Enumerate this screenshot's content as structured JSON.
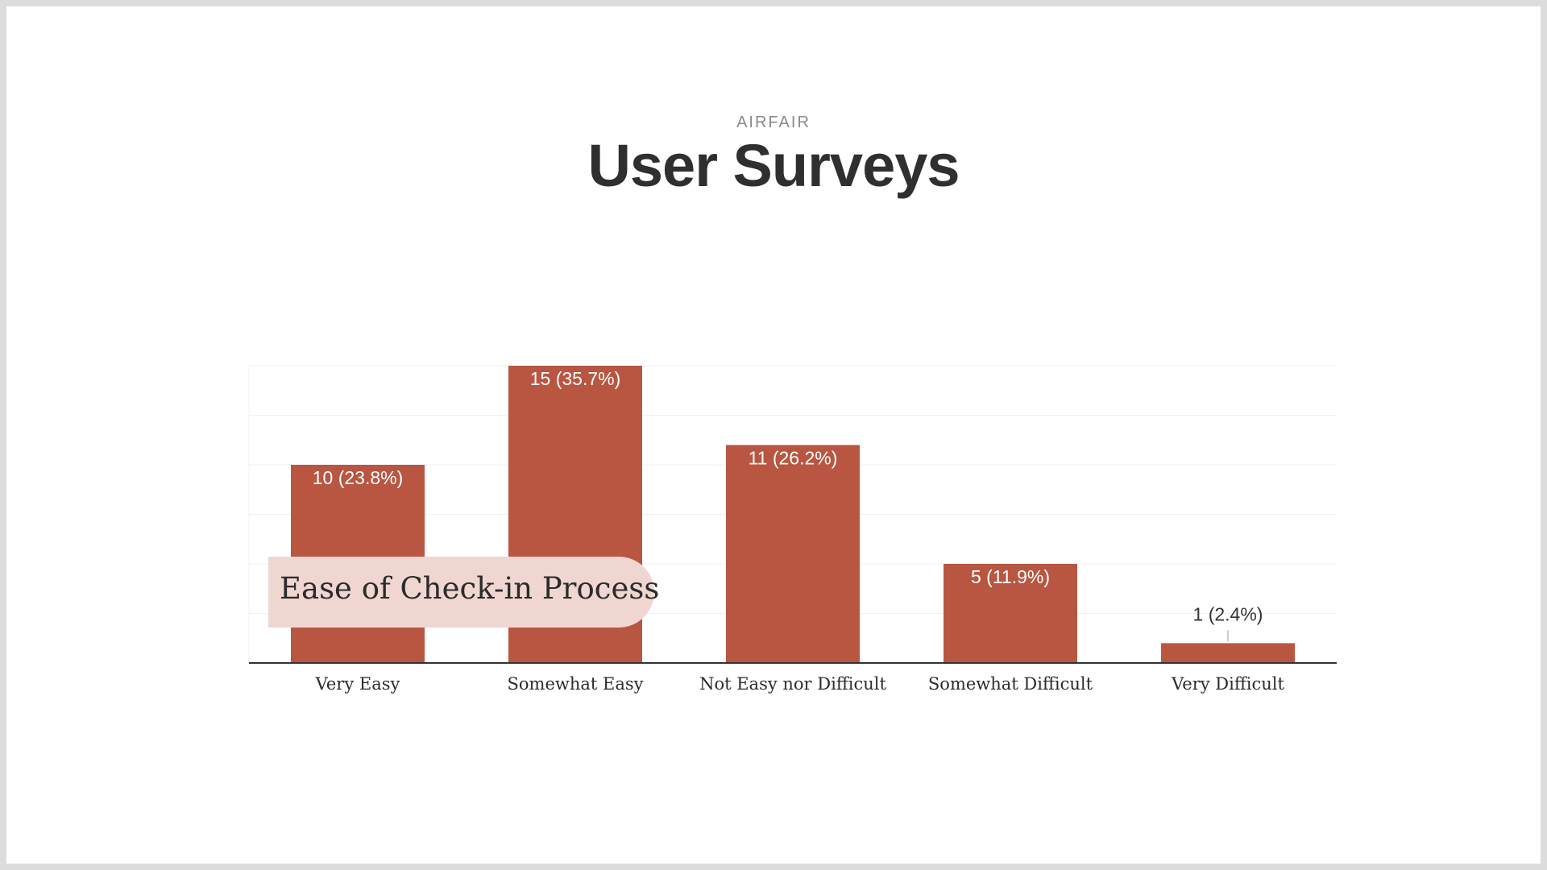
{
  "slide": {
    "eyebrow": "AIRFAIR",
    "title": "User Surveys"
  },
  "colors": {
    "bar": "#b85641",
    "overlay": "#f0d6d0",
    "gridline": "#f0f0f0",
    "axis": "#333333"
  },
  "chart_data": {
    "type": "bar",
    "title": "Ease of Check-in Process",
    "categories": [
      "Very Easy",
      "Somewhat Easy",
      "Not Easy nor Difficult",
      "Somewhat Difficult",
      "Very Difficult"
    ],
    "values": [
      10,
      15,
      11,
      5,
      1
    ],
    "data_labels": [
      "10 (23.8%)",
      "15 (35.7%)",
      "11 (26.2%)",
      "5 (11.9%)",
      "1 (2.4%)"
    ],
    "xlabel": "",
    "ylabel": "",
    "ylim": [
      0,
      15
    ],
    "grid": true,
    "legend": "none"
  }
}
